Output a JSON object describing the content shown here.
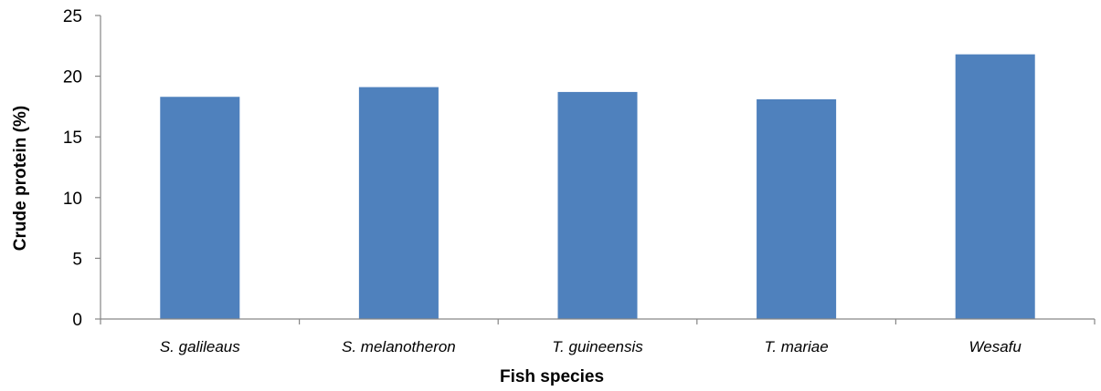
{
  "chart_data": {
    "type": "bar",
    "categories": [
      "S. galileaus",
      "S. melanotheron",
      "T. guineensis",
      "T. mariae",
      "Wesafu"
    ],
    "values": [
      18.3,
      19.1,
      18.7,
      18.1,
      21.8
    ],
    "title": "",
    "xlabel": "Fish species",
    "ylabel": "Crude protein (%)",
    "ylim": [
      0,
      25
    ],
    "yticks": [
      0,
      5,
      10,
      15,
      20,
      25
    ],
    "grid": false,
    "legend": "none",
    "bar_color": "#4F81BD",
    "axis_color": "#868686"
  }
}
